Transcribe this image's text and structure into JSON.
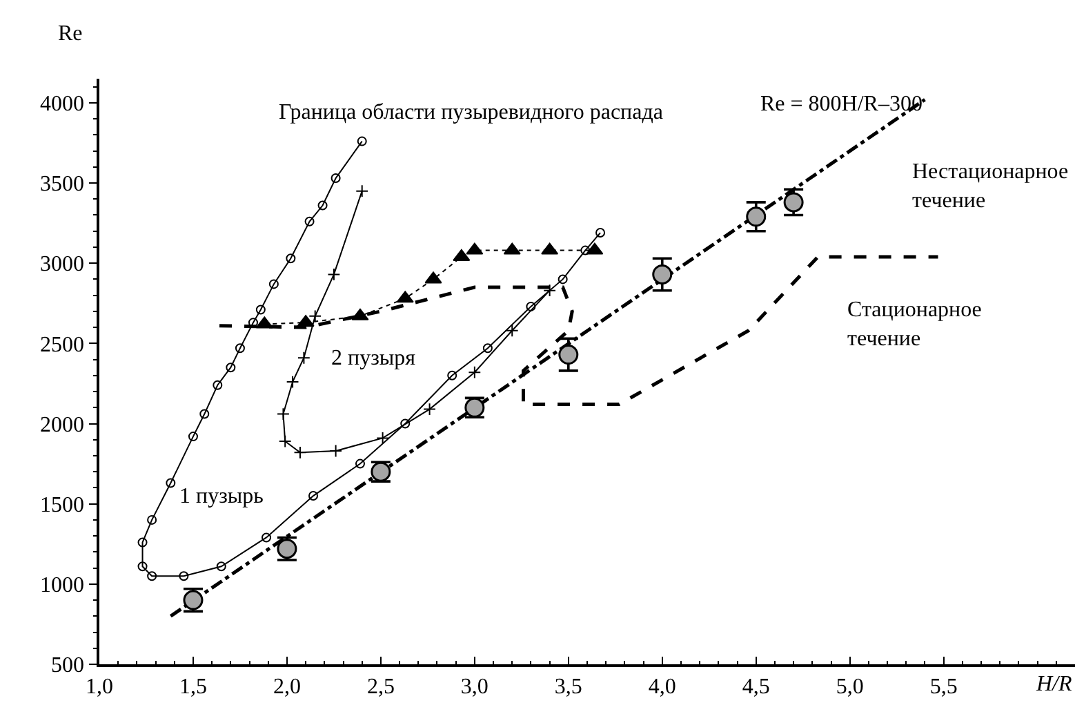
{
  "chart_data": {
    "type": "line",
    "xlabel": "H/R",
    "ylabel": "Re",
    "xlim": [
      1.0,
      6.2
    ],
    "ylim": [
      500,
      4150
    ],
    "xticks": [
      {
        "value": 1.0,
        "label": "1,0"
      },
      {
        "value": 1.5,
        "label": "1,5"
      },
      {
        "value": 2.0,
        "label": "2,0"
      },
      {
        "value": 2.5,
        "label": "2,5"
      },
      {
        "value": 3.0,
        "label": "3,0"
      },
      {
        "value": 3.5,
        "label": "3,5"
      },
      {
        "value": 4.0,
        "label": "4,0"
      },
      {
        "value": 4.5,
        "label": "4,5"
      },
      {
        "value": 5.0,
        "label": "5,0"
      },
      {
        "value": 5.5,
        "label": "5,5"
      }
    ],
    "yticks": [
      500,
      1000,
      1500,
      2000,
      2500,
      3000,
      3500,
      4000
    ],
    "series": [
      {
        "color": "#000000",
        "marker": "circle",
        "line_style": "solid",
        "x": [
          2.4,
          2.26,
          2.19,
          2.12,
          2.02,
          1.93,
          1.86,
          1.82,
          1.75,
          1.7,
          1.63,
          1.56,
          1.5,
          1.38,
          1.28,
          1.23,
          1.23,
          1.28,
          1.45,
          1.65,
          1.89,
          2.14,
          2.39,
          2.63,
          2.88,
          3.07,
          3.3,
          3.47,
          3.59,
          3.67
        ],
        "values": [
          3760,
          3530,
          3360,
          3260,
          3030,
          2870,
          2710,
          2630,
          2470,
          2350,
          2240,
          2060,
          1920,
          1630,
          1400,
          1260,
          1110,
          1050,
          1050,
          1110,
          1290,
          1550,
          1750,
          2000,
          2300,
          2470,
          2730,
          2900,
          3080,
          3190
        ]
      },
      {
        "color": "#000000",
        "marker": "cross",
        "line_style": "solid",
        "x": [
          2.4,
          2.25,
          2.15,
          2.09,
          2.03,
          1.98,
          1.99,
          2.07,
          2.26,
          2.51,
          2.76,
          3.0,
          3.2,
          3.4
        ],
        "values": [
          3450,
          2930,
          2670,
          2410,
          2260,
          2060,
          1890,
          1820,
          1830,
          1910,
          2090,
          2320,
          2580,
          2830
        ]
      },
      {
        "color": "#000000",
        "marker": "triangle",
        "line_style": "dotted",
        "x": [
          1.88,
          2.1,
          2.39,
          2.63,
          2.78,
          2.93,
          3.0,
          3.2,
          3.4,
          3.64
        ],
        "values": [
          2620,
          2630,
          2670,
          2780,
          2900,
          3040,
          3080,
          3080,
          3080,
          3080
        ]
      },
      {
        "color": "#000000",
        "marker": "none",
        "line_style": "dashed",
        "x": [
          1.64,
          2.1,
          2.5,
          3.0,
          3.47,
          3.52,
          3.5,
          3.26,
          3.26,
          3.77,
          4.46,
          4.83,
          5.47
        ],
        "values": [
          2610,
          2600,
          2700,
          2850,
          2850,
          2700,
          2580,
          2330,
          2120,
          2120,
          2580,
          3040,
          3040
        ]
      },
      {
        "color": "#000000",
        "marker": "none",
        "line_style": "dashdot",
        "x": [
          1.38,
          5.4
        ],
        "values": [
          800,
          4020
        ]
      },
      {
        "type": "scatter",
        "color": "#a6a6a6",
        "marker": "circle",
        "x": [
          1.5,
          2.0,
          2.5,
          3.0,
          3.5,
          4.0,
          4.5,
          4.7
        ],
        "values": [
          900,
          1220,
          1700,
          2100,
          2430,
          2930,
          3290,
          3380
        ],
        "errors": [
          70,
          70,
          60,
          60,
          100,
          100,
          90,
          80
        ]
      }
    ],
    "annotations": [
      "Граница области пузыревидного распада",
      "Re = 800H/R–300",
      "Нестационарное\nтечение",
      "Стационарное\nтечение",
      "2 пузыря",
      "1 пузырь"
    ]
  }
}
